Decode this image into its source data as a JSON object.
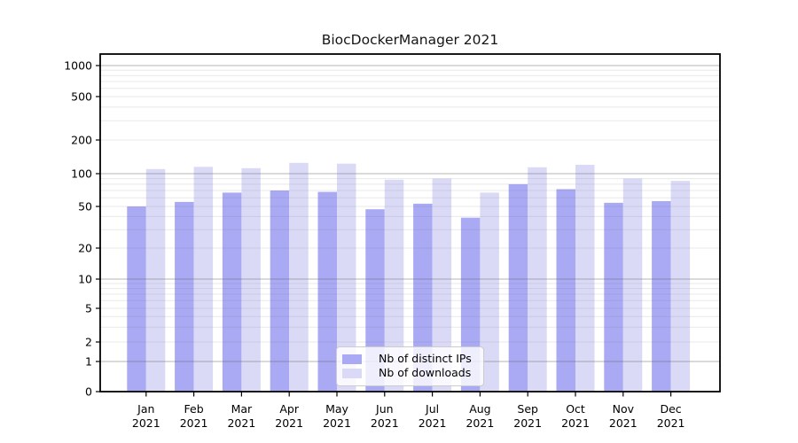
{
  "title": "BiocDockerManager 2021",
  "chart_data": {
    "type": "bar",
    "title": "BiocDockerManager 2021",
    "months": [
      "Jan",
      "Feb",
      "Mar",
      "Apr",
      "May",
      "Jun",
      "Jul",
      "Aug",
      "Sep",
      "Oct",
      "Nov",
      "Dec"
    ],
    "year": "2021",
    "series": [
      {
        "name": "Nb of distinct IPs",
        "color": "#a9a9f4",
        "values": [
          50,
          55,
          67,
          70,
          68,
          47,
          53,
          39,
          80,
          72,
          54,
          56
        ]
      },
      {
        "name": "Nb of downloads",
        "color": "#dadaf7",
        "values": [
          110,
          115,
          112,
          125,
          123,
          88,
          90,
          67,
          114,
          120,
          90,
          86
        ]
      }
    ],
    "yticks": [
      0,
      1,
      2,
      5,
      10,
      20,
      50,
      100,
      200,
      500,
      1000
    ],
    "major_gridlines_at": [
      1,
      10,
      100,
      1000
    ],
    "yscale": "log-like with zero baseline",
    "ylim": [
      0,
      1300
    ],
    "grid": true,
    "legend_position": "lower-center",
    "xlabel": "",
    "ylabel": ""
  }
}
